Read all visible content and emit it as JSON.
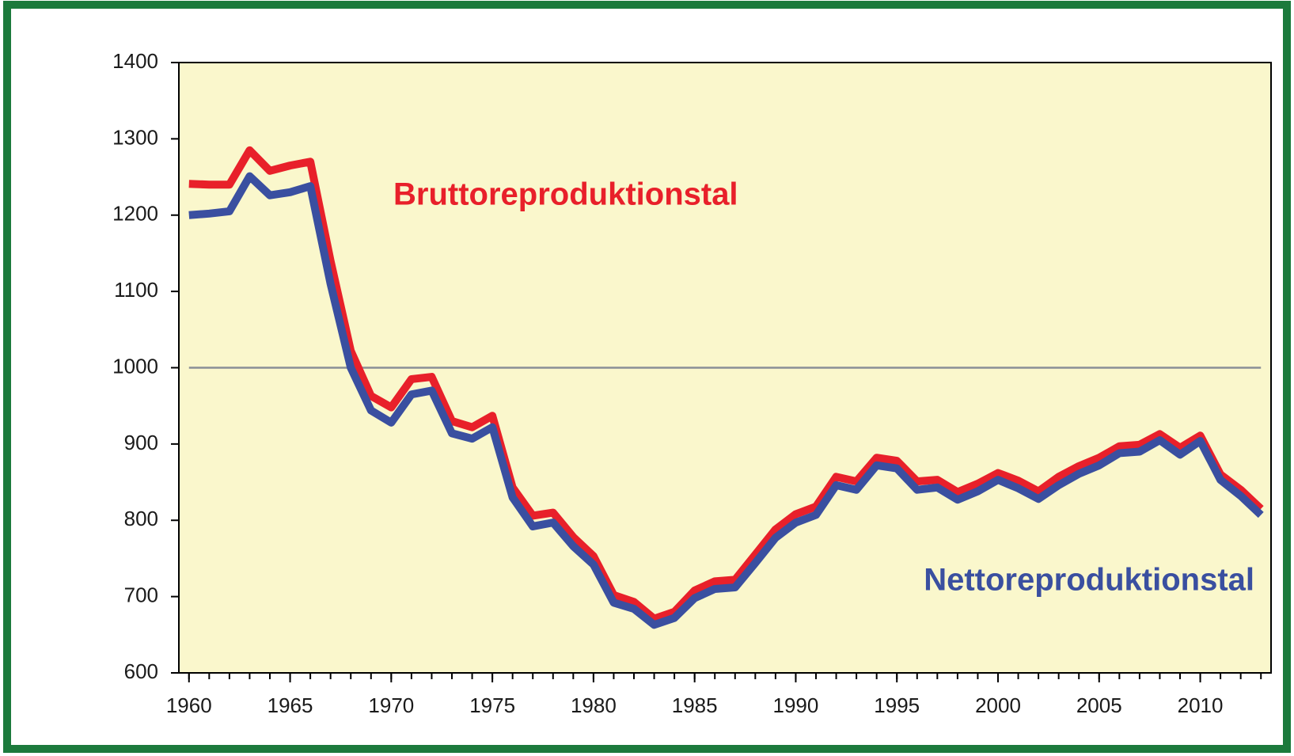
{
  "chart_data": {
    "type": "line",
    "x": [
      1960,
      1961,
      1962,
      1963,
      1964,
      1965,
      1966,
      1967,
      1968,
      1969,
      1970,
      1971,
      1972,
      1973,
      1974,
      1975,
      1976,
      1977,
      1978,
      1979,
      1980,
      1981,
      1982,
      1983,
      1984,
      1985,
      1986,
      1987,
      1988,
      1989,
      1990,
      1991,
      1992,
      1993,
      1994,
      1995,
      1996,
      1997,
      1998,
      1999,
      2000,
      2001,
      2002,
      2003,
      2004,
      2005,
      2006,
      2007,
      2008,
      2009,
      2010,
      2011,
      2012,
      2013
    ],
    "series": [
      {
        "name": "Bruttoreproduktionstal",
        "color": "#e8202a",
        "values": [
          1241,
          1240,
          1240,
          1285,
          1258,
          1265,
          1270,
          1140,
          1022,
          963,
          948,
          985,
          988,
          930,
          922,
          937,
          843,
          806,
          810,
          778,
          753,
          702,
          693,
          671,
          680,
          708,
          720,
          722,
          755,
          788,
          808,
          818,
          857,
          851,
          882,
          878,
          851,
          853,
          837,
          848,
          862,
          852,
          838,
          857,
          871,
          882,
          897,
          899,
          913,
          895,
          911,
          860,
          840,
          815
        ]
      },
      {
        "name": "Nettoreproduktionstal",
        "color": "#3a4fa0",
        "values": [
          1200,
          1202,
          1205,
          1251,
          1226,
          1230,
          1238,
          1110,
          1000,
          944,
          928,
          965,
          970,
          914,
          907,
          922,
          830,
          792,
          797,
          766,
          742,
          692,
          684,
          663,
          672,
          698,
          710,
          712,
          744,
          777,
          797,
          807,
          846,
          840,
          872,
          868,
          840,
          843,
          827,
          838,
          853,
          842,
          828,
          846,
          861,
          872,
          888,
          890,
          905,
          886,
          904,
          853,
          832,
          807
        ]
      }
    ],
    "xlim": [
      1959.5,
      2013.5
    ],
    "xticks": [
      1960,
      1965,
      1970,
      1975,
      1980,
      1985,
      1990,
      1995,
      2000,
      2005,
      2010
    ],
    "ylim": [
      600,
      1400
    ],
    "yticks": [
      600,
      700,
      800,
      900,
      1000,
      1100,
      1200,
      1300,
      1400
    ],
    "reference_line": 1000,
    "plot_background": "#faf7cc",
    "frame_color": "#1c7a3c"
  }
}
